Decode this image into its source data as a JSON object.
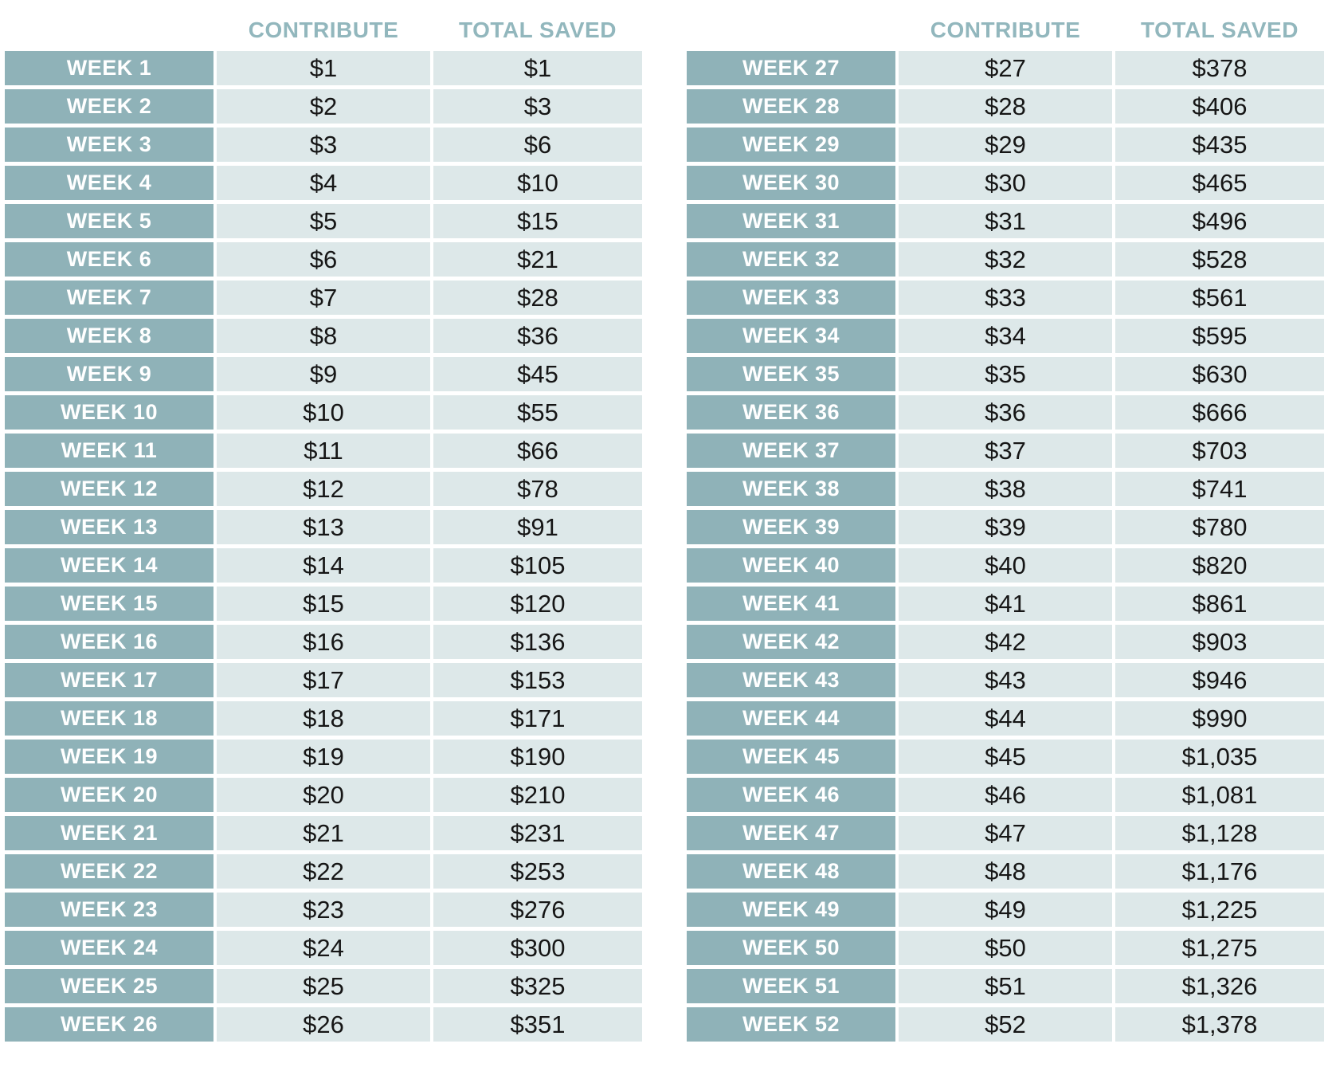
{
  "colors": {
    "background": "#ffffff",
    "week_cell_bg": "#8fb2b8",
    "data_cell_bg": "#dde8e9",
    "header_text": "#92b7bd",
    "week_text": "#ffffff",
    "data_text": "#161616"
  },
  "tables": [
    {
      "headers": {
        "week": "",
        "contribute": "CONTRIBUTE",
        "total": "TOTAL SAVED"
      },
      "rows": [
        [
          "WEEK 1",
          "$1",
          "$1"
        ],
        [
          "WEEK 2",
          "$2",
          "$3"
        ],
        [
          "WEEK 3",
          "$3",
          "$6"
        ],
        [
          "WEEK 4",
          "$4",
          "$10"
        ],
        [
          "WEEK 5",
          "$5",
          "$15"
        ],
        [
          "WEEK 6",
          "$6",
          "$21"
        ],
        [
          "WEEK 7",
          "$7",
          "$28"
        ],
        [
          "WEEK 8",
          "$8",
          "$36"
        ],
        [
          "WEEK 9",
          "$9",
          "$45"
        ],
        [
          "WEEK 10",
          "$10",
          "$55"
        ],
        [
          "WEEK 11",
          "$11",
          "$66"
        ],
        [
          "WEEK 12",
          "$12",
          "$78"
        ],
        [
          "WEEK 13",
          "$13",
          "$91"
        ],
        [
          "WEEK 14",
          "$14",
          "$105"
        ],
        [
          "WEEK 15",
          "$15",
          "$120"
        ],
        [
          "WEEK 16",
          "$16",
          "$136"
        ],
        [
          "WEEK 17",
          "$17",
          "$153"
        ],
        [
          "WEEK 18",
          "$18",
          "$171"
        ],
        [
          "WEEK 19",
          "$19",
          "$190"
        ],
        [
          "WEEK 20",
          "$20",
          "$210"
        ],
        [
          "WEEK 21",
          "$21",
          "$231"
        ],
        [
          "WEEK 22",
          "$22",
          "$253"
        ],
        [
          "WEEK 23",
          "$23",
          "$276"
        ],
        [
          "WEEK 24",
          "$24",
          "$300"
        ],
        [
          "WEEK 25",
          "$25",
          "$325"
        ],
        [
          "WEEK 26",
          "$26",
          "$351"
        ]
      ]
    },
    {
      "headers": {
        "week": "",
        "contribute": "CONTRIBUTE",
        "total": "TOTAL SAVED"
      },
      "rows": [
        [
          "WEEK 27",
          "$27",
          "$378"
        ],
        [
          "WEEK 28",
          "$28",
          "$406"
        ],
        [
          "WEEK 29",
          "$29",
          "$435"
        ],
        [
          "WEEK 30",
          "$30",
          "$465"
        ],
        [
          "WEEK 31",
          "$31",
          "$496"
        ],
        [
          "WEEK 32",
          "$32",
          "$528"
        ],
        [
          "WEEK 33",
          "$33",
          "$561"
        ],
        [
          "WEEK 34",
          "$34",
          "$595"
        ],
        [
          "WEEK 35",
          "$35",
          "$630"
        ],
        [
          "WEEK 36",
          "$36",
          "$666"
        ],
        [
          "WEEK 37",
          "$37",
          "$703"
        ],
        [
          "WEEK 38",
          "$38",
          "$741"
        ],
        [
          "WEEK 39",
          "$39",
          "$780"
        ],
        [
          "WEEK 40",
          "$40",
          "$820"
        ],
        [
          "WEEK 41",
          "$41",
          "$861"
        ],
        [
          "WEEK 42",
          "$42",
          "$903"
        ],
        [
          "WEEK 43",
          "$43",
          "$946"
        ],
        [
          "WEEK 44",
          "$44",
          "$990"
        ],
        [
          "WEEK 45",
          "$45",
          "$1,035"
        ],
        [
          "WEEK 46",
          "$46",
          "$1,081"
        ],
        [
          "WEEK 47",
          "$47",
          "$1,128"
        ],
        [
          "WEEK 48",
          "$48",
          "$1,176"
        ],
        [
          "WEEK 49",
          "$49",
          "$1,225"
        ],
        [
          "WEEK 50",
          "$50",
          "$1,275"
        ],
        [
          "WEEK 51",
          "$51",
          "$1,326"
        ],
        [
          "WEEK 52",
          "$52",
          "$1,378"
        ]
      ]
    }
  ],
  "chart_data": {
    "type": "table",
    "columns": [
      "WEEK",
      "CONTRIBUTE",
      "TOTAL SAVED"
    ],
    "weeks": [
      1,
      2,
      3,
      4,
      5,
      6,
      7,
      8,
      9,
      10,
      11,
      12,
      13,
      14,
      15,
      16,
      17,
      18,
      19,
      20,
      21,
      22,
      23,
      24,
      25,
      26,
      27,
      28,
      29,
      30,
      31,
      32,
      33,
      34,
      35,
      36,
      37,
      38,
      39,
      40,
      41,
      42,
      43,
      44,
      45,
      46,
      47,
      48,
      49,
      50,
      51,
      52
    ],
    "contribute": [
      1,
      2,
      3,
      4,
      5,
      6,
      7,
      8,
      9,
      10,
      11,
      12,
      13,
      14,
      15,
      16,
      17,
      18,
      19,
      20,
      21,
      22,
      23,
      24,
      25,
      26,
      27,
      28,
      29,
      30,
      31,
      32,
      33,
      34,
      35,
      36,
      37,
      38,
      39,
      40,
      41,
      42,
      43,
      44,
      45,
      46,
      47,
      48,
      49,
      50,
      51,
      52
    ],
    "total_saved": [
      1,
      3,
      6,
      10,
      15,
      21,
      28,
      36,
      45,
      55,
      66,
      78,
      91,
      105,
      120,
      136,
      153,
      171,
      190,
      210,
      231,
      253,
      276,
      300,
      325,
      351,
      378,
      406,
      435,
      465,
      496,
      528,
      561,
      595,
      630,
      666,
      703,
      741,
      780,
      820,
      861,
      903,
      946,
      990,
      1035,
      1081,
      1128,
      1176,
      1225,
      1275,
      1326,
      1378
    ],
    "layout": "two side-by-side tables, weeks 1-26 left and weeks 27-52 right"
  }
}
